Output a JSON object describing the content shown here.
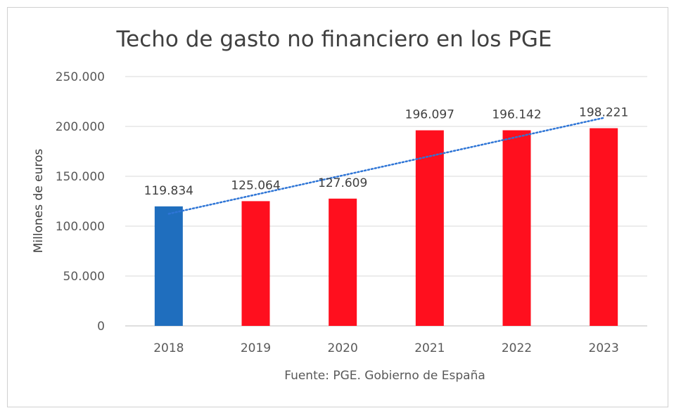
{
  "chart_data": {
    "type": "bar",
    "title": "Techo de gasto no financiero en los PGE",
    "xlabel": "Fuente: PGE. Gobierno de España",
    "ylabel": "Millones de euros",
    "categories": [
      "2018",
      "2019",
      "2020",
      "2021",
      "2022",
      "2023"
    ],
    "values": [
      119834,
      125064,
      127609,
      196097,
      196142,
      198221
    ],
    "value_labels": [
      "119.834",
      "125.064",
      "127.609",
      "196.097",
      "196.142",
      "198.221"
    ],
    "bar_colors": [
      "#1F6EBE",
      "#FF0F1E",
      "#FF0F1E",
      "#FF0F1E",
      "#FF0F1E",
      "#FF0F1E"
    ],
    "ylim": [
      0,
      250000
    ],
    "yticks": [
      0,
      50000,
      100000,
      150000,
      200000,
      250000
    ],
    "ytick_labels": [
      "0",
      "50.000",
      "100.000",
      "150.000",
      "200.000",
      "250.000"
    ],
    "grid": true,
    "trendline": {
      "type": "linear",
      "style": "dotted",
      "color": "#2E75D6"
    }
  }
}
